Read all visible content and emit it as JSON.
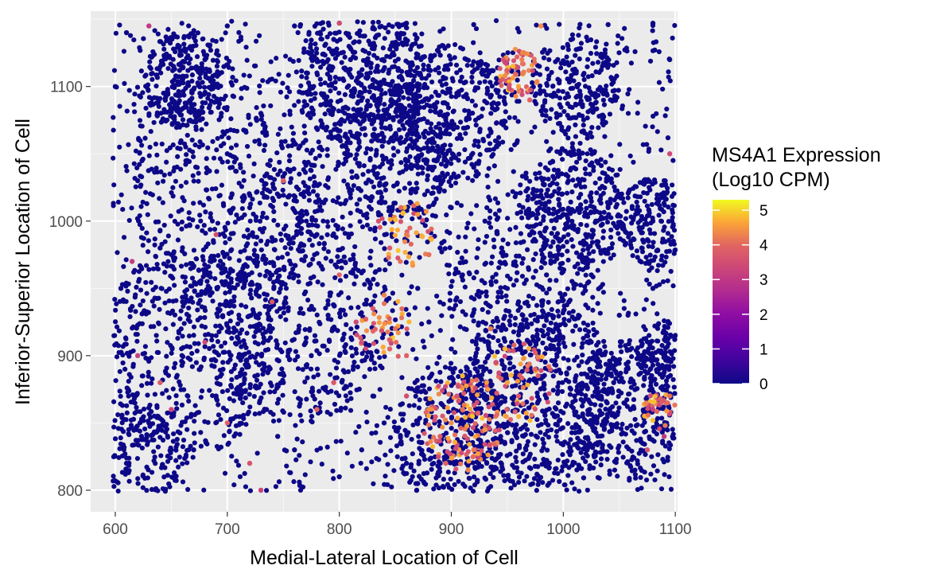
{
  "chart_data": {
    "type": "scatter",
    "title": "",
    "xlabel": "Medial-Lateral Location of Cell",
    "ylabel": "Inferior-Superior Location of Cell",
    "xlim": [
      578,
      1102
    ],
    "ylim": [
      784,
      1156
    ],
    "xticks": [
      600,
      700,
      800,
      900,
      1000,
      1100
    ],
    "yticks": [
      800,
      900,
      1000,
      1100
    ],
    "x_tick_labels": [
      "600",
      "700",
      "800",
      "900",
      "1000",
      "1100"
    ],
    "y_tick_labels": [
      "800",
      "900",
      "1000",
      "1100"
    ],
    "grid": true,
    "panel_background": "#ebebeb",
    "point_color_low": "#0d0887",
    "colorscale": "plasma",
    "legend": {
      "title_line1": "MS4A1 Expression",
      "title_line2": "(Log10 CPM)",
      "min": 0,
      "max": 5.3,
      "breaks": [
        0,
        1,
        2,
        3,
        4,
        5
      ],
      "break_labels": [
        "0",
        "1",
        "2",
        "3",
        "4",
        "5"
      ],
      "placement": "right"
    },
    "series": [
      {
        "points_note_x_y_expr": "sample of visible cells (x, y, log10 CPM)",
        "points": [
          [
            660,
            1105,
            0
          ],
          [
            652,
            1115,
            0
          ],
          [
            670,
            1098,
            0
          ],
          [
            645,
            1092,
            0
          ],
          [
            680,
            1120,
            0
          ],
          [
            662,
            1128,
            0
          ],
          [
            655,
            1082,
            0
          ],
          [
            690,
            1100,
            0
          ],
          [
            810,
            1120,
            0
          ],
          [
            830,
            1105,
            0
          ],
          [
            795,
            1135,
            0
          ],
          [
            850,
            1130,
            0
          ],
          [
            870,
            1110,
            0
          ],
          [
            905,
            1095,
            0
          ],
          [
            880,
            1060,
            0
          ],
          [
            920,
            1040,
            0
          ],
          [
            1010,
            1110,
            0
          ],
          [
            1025,
            1095,
            0
          ],
          [
            995,
            1120,
            0
          ],
          [
            960,
            1100,
            4.6
          ],
          [
            955,
            1115,
            4.8
          ],
          [
            965,
            1125,
            4.3
          ],
          [
            948,
            1108,
            4.4
          ],
          [
            970,
            1090,
            3.9
          ],
          [
            1040,
            1010,
            0
          ],
          [
            1000,
            1005,
            0
          ],
          [
            1020,
            990,
            0
          ],
          [
            985,
            1020,
            0
          ],
          [
            1080,
            1000,
            0
          ],
          [
            1090,
            1030,
            0
          ],
          [
            1070,
            980,
            0
          ],
          [
            1095,
            1050,
            3.4
          ],
          [
            860,
            990,
            4.2
          ],
          [
            870,
            1005,
            4.5
          ],
          [
            845,
            980,
            3.8
          ],
          [
            880,
            975,
            4.1
          ],
          [
            855,
            1010,
            4.0
          ],
          [
            835,
            1000,
            3.6
          ],
          [
            850,
            920,
            4.1
          ],
          [
            830,
            935,
            3.7
          ],
          [
            820,
            910,
            3.5
          ],
          [
            860,
            900,
            3.9
          ],
          [
            840,
            945,
            4.3
          ],
          [
            815,
            925,
            3.4
          ],
          [
            845,
            905,
            4.0
          ],
          [
            900,
            850,
            4.4
          ],
          [
            910,
            860,
            4.1
          ],
          [
            890,
            840,
            3.8
          ],
          [
            920,
            830,
            4.2
          ],
          [
            905,
            870,
            3.6
          ],
          [
            930,
            845,
            4.5
          ],
          [
            895,
            820,
            3.9
          ],
          [
            915,
            815,
            4.3
          ],
          [
            950,
            880,
            4.6
          ],
          [
            960,
            870,
            3.8
          ],
          [
            975,
            890,
            4.0
          ],
          [
            940,
            895,
            3.5
          ],
          [
            1010,
            870,
            0
          ],
          [
            1030,
            850,
            0
          ],
          [
            1060,
            860,
            0
          ],
          [
            1045,
            880,
            0
          ],
          [
            1080,
            860,
            3.2
          ],
          [
            1090,
            840,
            3.0
          ],
          [
            1075,
            830,
            3.6
          ],
          [
            1095,
            870,
            4.1
          ],
          [
            1085,
            890,
            0
          ],
          [
            1070,
            900,
            0
          ],
          [
            620,
            900,
            3.2
          ],
          [
            640,
            880,
            3.8
          ],
          [
            630,
            850,
            0
          ],
          [
            610,
            820,
            0
          ],
          [
            650,
            860,
            3.4
          ],
          [
            670,
            830,
            0
          ],
          [
            690,
            870,
            0
          ],
          [
            700,
            850,
            3.9
          ],
          [
            720,
            820,
            3.6
          ],
          [
            730,
            800,
            3.3
          ],
          [
            760,
            830,
            0
          ],
          [
            780,
            860,
            4.0
          ],
          [
            795,
            880,
            3.7
          ],
          [
            775,
            900,
            0
          ],
          [
            740,
            940,
            3.8
          ],
          [
            710,
            960,
            0
          ],
          [
            690,
            990,
            3.5
          ],
          [
            720,
            1010,
            0
          ],
          [
            750,
            1030,
            3.9
          ],
          [
            770,
            1060,
            0
          ],
          [
            730,
            1080,
            0
          ],
          [
            700,
            1050,
            0
          ],
          [
            620,
            1030,
            0
          ],
          [
            640,
            980,
            0
          ],
          [
            605,
            950,
            0
          ],
          [
            615,
            970,
            3.1
          ],
          [
            660,
            940,
            0
          ],
          [
            680,
            910,
            3.4
          ],
          [
            600,
            1100,
            0
          ],
          [
            610,
            1140,
            0
          ],
          [
            630,
            1145,
            3.0
          ],
          [
            700,
            1145,
            0
          ],
          [
            760,
            1145,
            0
          ],
          [
            800,
            1147,
            3.5
          ],
          [
            860,
            1147,
            0
          ],
          [
            920,
            1146,
            0
          ],
          [
            980,
            1145,
            4.4
          ],
          [
            1040,
            1146,
            0
          ],
          [
            1080,
            1147,
            0
          ],
          [
            1095,
            1120,
            0
          ],
          [
            985,
            960,
            0
          ],
          [
            1005,
            940,
            0
          ],
          [
            1025,
            960,
            0
          ],
          [
            960,
            940,
            0
          ],
          [
            935,
            920,
            4.2
          ],
          [
            1050,
            930,
            0
          ],
          [
            1080,
            950,
            0
          ],
          [
            1100,
            915,
            0
          ],
          [
            910,
            960,
            0
          ],
          [
            890,
            980,
            0
          ],
          [
            900,
            1010,
            0
          ],
          [
            930,
            1000,
            0
          ],
          [
            945,
            980,
            0
          ],
          [
            870,
            950,
            0
          ],
          [
            880,
            925,
            0
          ],
          [
            900,
            905,
            0
          ],
          [
            760,
            960,
            0
          ],
          [
            780,
            990,
            0
          ],
          [
            800,
            960,
            3.9
          ],
          [
            790,
            930,
            0
          ],
          [
            770,
            910,
            0
          ],
          [
            750,
            880,
            0
          ],
          [
            735,
            860,
            0
          ],
          [
            745,
            840,
            0
          ],
          [
            800,
            810,
            0
          ],
          [
            820,
            830,
            0
          ],
          [
            840,
            850,
            0
          ],
          [
            860,
            820,
            0
          ],
          [
            870,
            805,
            0
          ],
          [
            880,
            830,
            0
          ],
          [
            860,
            870,
            3.5
          ],
          [
            830,
            870,
            0
          ]
        ]
      }
    ]
  }
}
